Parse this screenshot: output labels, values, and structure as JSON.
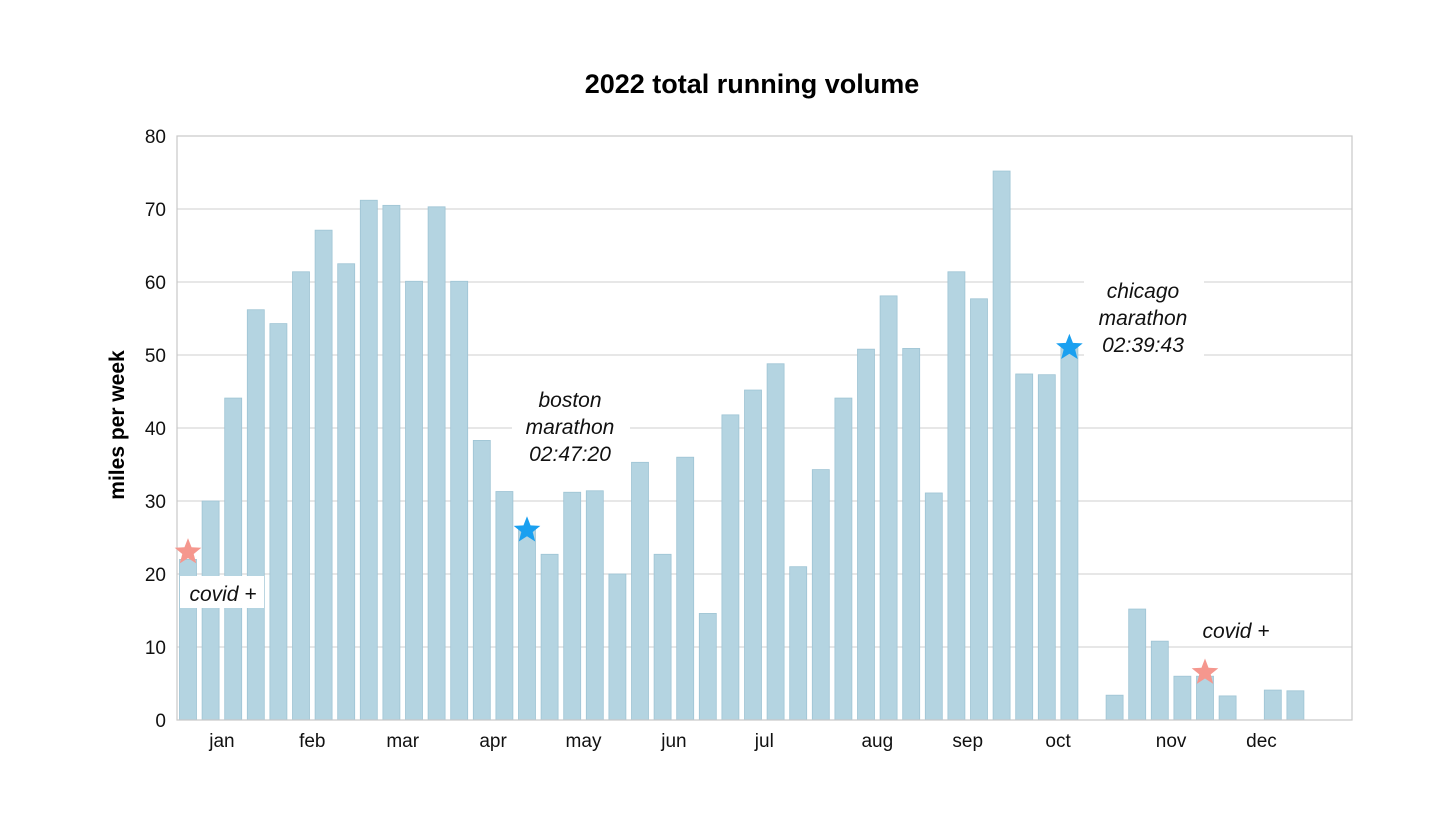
{
  "chart_data": {
    "type": "bar",
    "title": "2022 total running volume",
    "xlabel": "",
    "ylabel": "miles per week",
    "ylim": [
      0,
      80
    ],
    "yticks": [
      0,
      10,
      20,
      30,
      40,
      50,
      60,
      70,
      80
    ],
    "grid": true,
    "month_labels": [
      "jan",
      "feb",
      "mar",
      "apr",
      "may",
      "jun",
      "jul",
      "aug",
      "sep",
      "oct",
      "nov",
      "dec"
    ],
    "month_week_positions": [
      2.5,
      6.5,
      10.5,
      14.5,
      18.5,
      22.5,
      26.5,
      31.5,
      35.5,
      39.5,
      44.5,
      48.5
    ],
    "weeks": [
      1,
      2,
      3,
      4,
      5,
      6,
      7,
      8,
      9,
      10,
      11,
      12,
      13,
      14,
      15,
      16,
      17,
      18,
      19,
      20,
      21,
      22,
      23,
      24,
      25,
      26,
      27,
      28,
      29,
      30,
      31,
      32,
      33,
      34,
      35,
      36,
      37,
      38,
      39,
      40,
      41,
      42,
      43,
      44,
      45,
      46,
      47,
      48,
      49,
      50,
      51,
      52
    ],
    "values": [
      22.0,
      30.0,
      44.1,
      56.2,
      54.3,
      61.4,
      67.1,
      62.5,
      71.2,
      70.5,
      60.1,
      70.3,
      60.1,
      38.3,
      31.3,
      26.4,
      22.7,
      31.2,
      31.4,
      20.0,
      35.3,
      22.7,
      36.0,
      14.6,
      41.8,
      45.2,
      48.8,
      21.0,
      34.3,
      44.1,
      50.8,
      58.1,
      50.9,
      31.1,
      61.4,
      57.7,
      75.2,
      47.4,
      47.3,
      51.0,
      0,
      3.4,
      15.2,
      10.8,
      6.0,
      6.0,
      3.3,
      0,
      4.1,
      4.0,
      0,
      0
    ],
    "bar_color": "#b4d4e1",
    "bar_edge_color": "#9ec4d4",
    "gridline_color": "#cfcfcf",
    "markers": [
      {
        "name": "covid-star-jan",
        "week": 1,
        "value": 23.0,
        "color": "#f5978e"
      },
      {
        "name": "boston-star",
        "week": 16,
        "value": 26.0,
        "color": "#1aa0f0"
      },
      {
        "name": "chicago-star",
        "week": 40,
        "value": 51.0,
        "color": "#1aa0f0"
      },
      {
        "name": "covid-star-nov",
        "week": 46,
        "value": 6.5,
        "color": "#f5978e"
      }
    ],
    "annotations": {
      "covid_jan": "covid +",
      "boston_line1": "boston",
      "boston_line2": "marathon",
      "boston_time": "02:47:20",
      "chicago_line1": "chicago",
      "chicago_line2": "marathon",
      "chicago_time": "02:39:43",
      "covid_nov": "covid +"
    }
  }
}
